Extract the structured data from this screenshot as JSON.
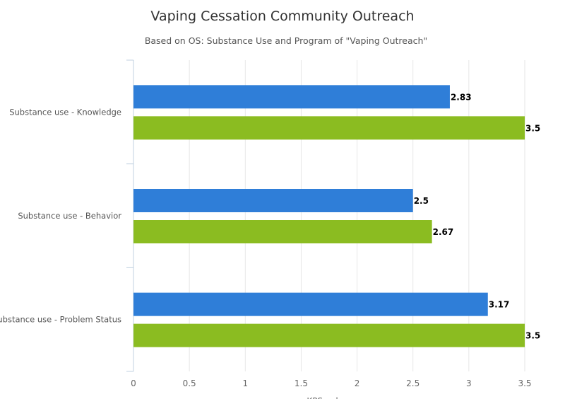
{
  "chart_data": {
    "type": "bar",
    "orientation": "horizontal",
    "title": "Vaping Cessation Community Outreach",
    "subtitle": "Based on OS: Substance Use and Program of \"Vaping Outreach\"",
    "categories": [
      "Substance use - Knowledge",
      "Substance use - Behavior",
      "Substance use - Problem Status"
    ],
    "series": [
      {
        "values": [
          2.83,
          2.5,
          3.17
        ],
        "color": "#2f7ed8"
      },
      {
        "values": [
          3.5,
          2.67,
          3.5
        ],
        "color": "#8bbc21"
      }
    ],
    "xlim": [
      0,
      3.5
    ],
    "xticks": [
      "0",
      "0.5",
      "1",
      "1.5",
      "2",
      "2.5",
      "3",
      "3.5"
    ],
    "xlabel": "KPS value",
    "grid": true
  }
}
